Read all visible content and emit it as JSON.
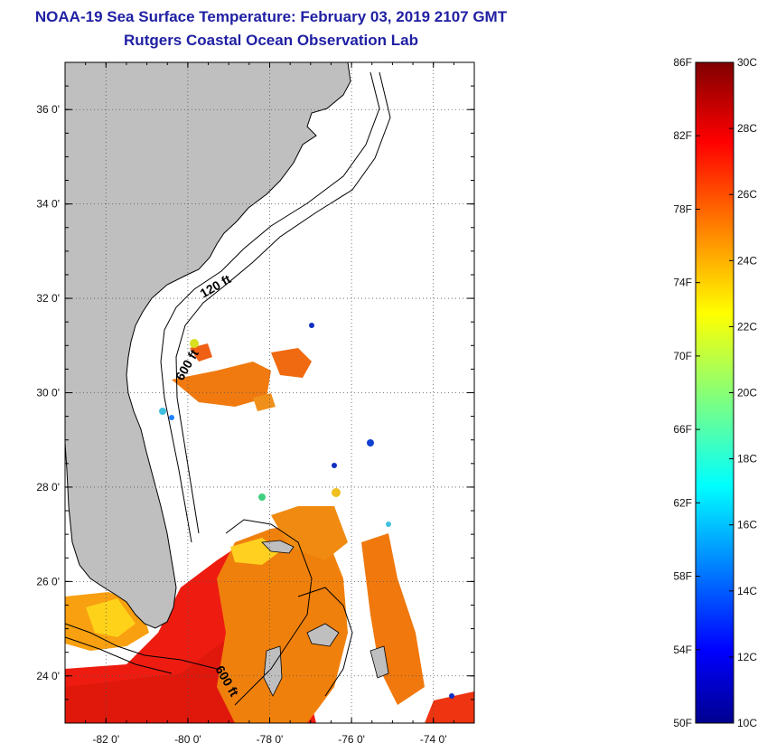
{
  "header": {
    "title": "NOAA-19 Sea Surface Temperature:  February 03, 2019 2107 GMT",
    "subtitle": "Rutgers Coastal Ocean Observation Lab"
  },
  "map": {
    "lon_range": [
      -83,
      -73
    ],
    "lat_range": [
      23,
      37
    ],
    "lon_ticks": [
      -82,
      -80,
      -78,
      -76,
      -74
    ],
    "lat_ticks": [
      24,
      26,
      28,
      30,
      32,
      34,
      36
    ],
    "lon_tick_labels": [
      "-82 0'",
      "-80 0'",
      "-78 0'",
      "-76 0'",
      "-74 0'"
    ],
    "lat_tick_labels": [
      "24 0'",
      "26 0'",
      "28 0'",
      "30 0'",
      "32 0'",
      "34 0'",
      "36 0'"
    ],
    "contour_labels": [
      "120 ft",
      "600 ft",
      "600 ft"
    ],
    "land_color": "#bfbfbf",
    "gridlines": true
  },
  "colorbar": {
    "f_labels": [
      "86F",
      "82F",
      "78F",
      "74F",
      "70F",
      "66F",
      "62F",
      "58F",
      "54F",
      "50F"
    ],
    "c_labels": [
      "30C",
      "28C",
      "26C",
      "24C",
      "22C",
      "20C",
      "18C",
      "16C",
      "14C",
      "12C",
      "10C"
    ],
    "range_c": [
      10,
      30
    ],
    "colormap": "jet"
  }
}
